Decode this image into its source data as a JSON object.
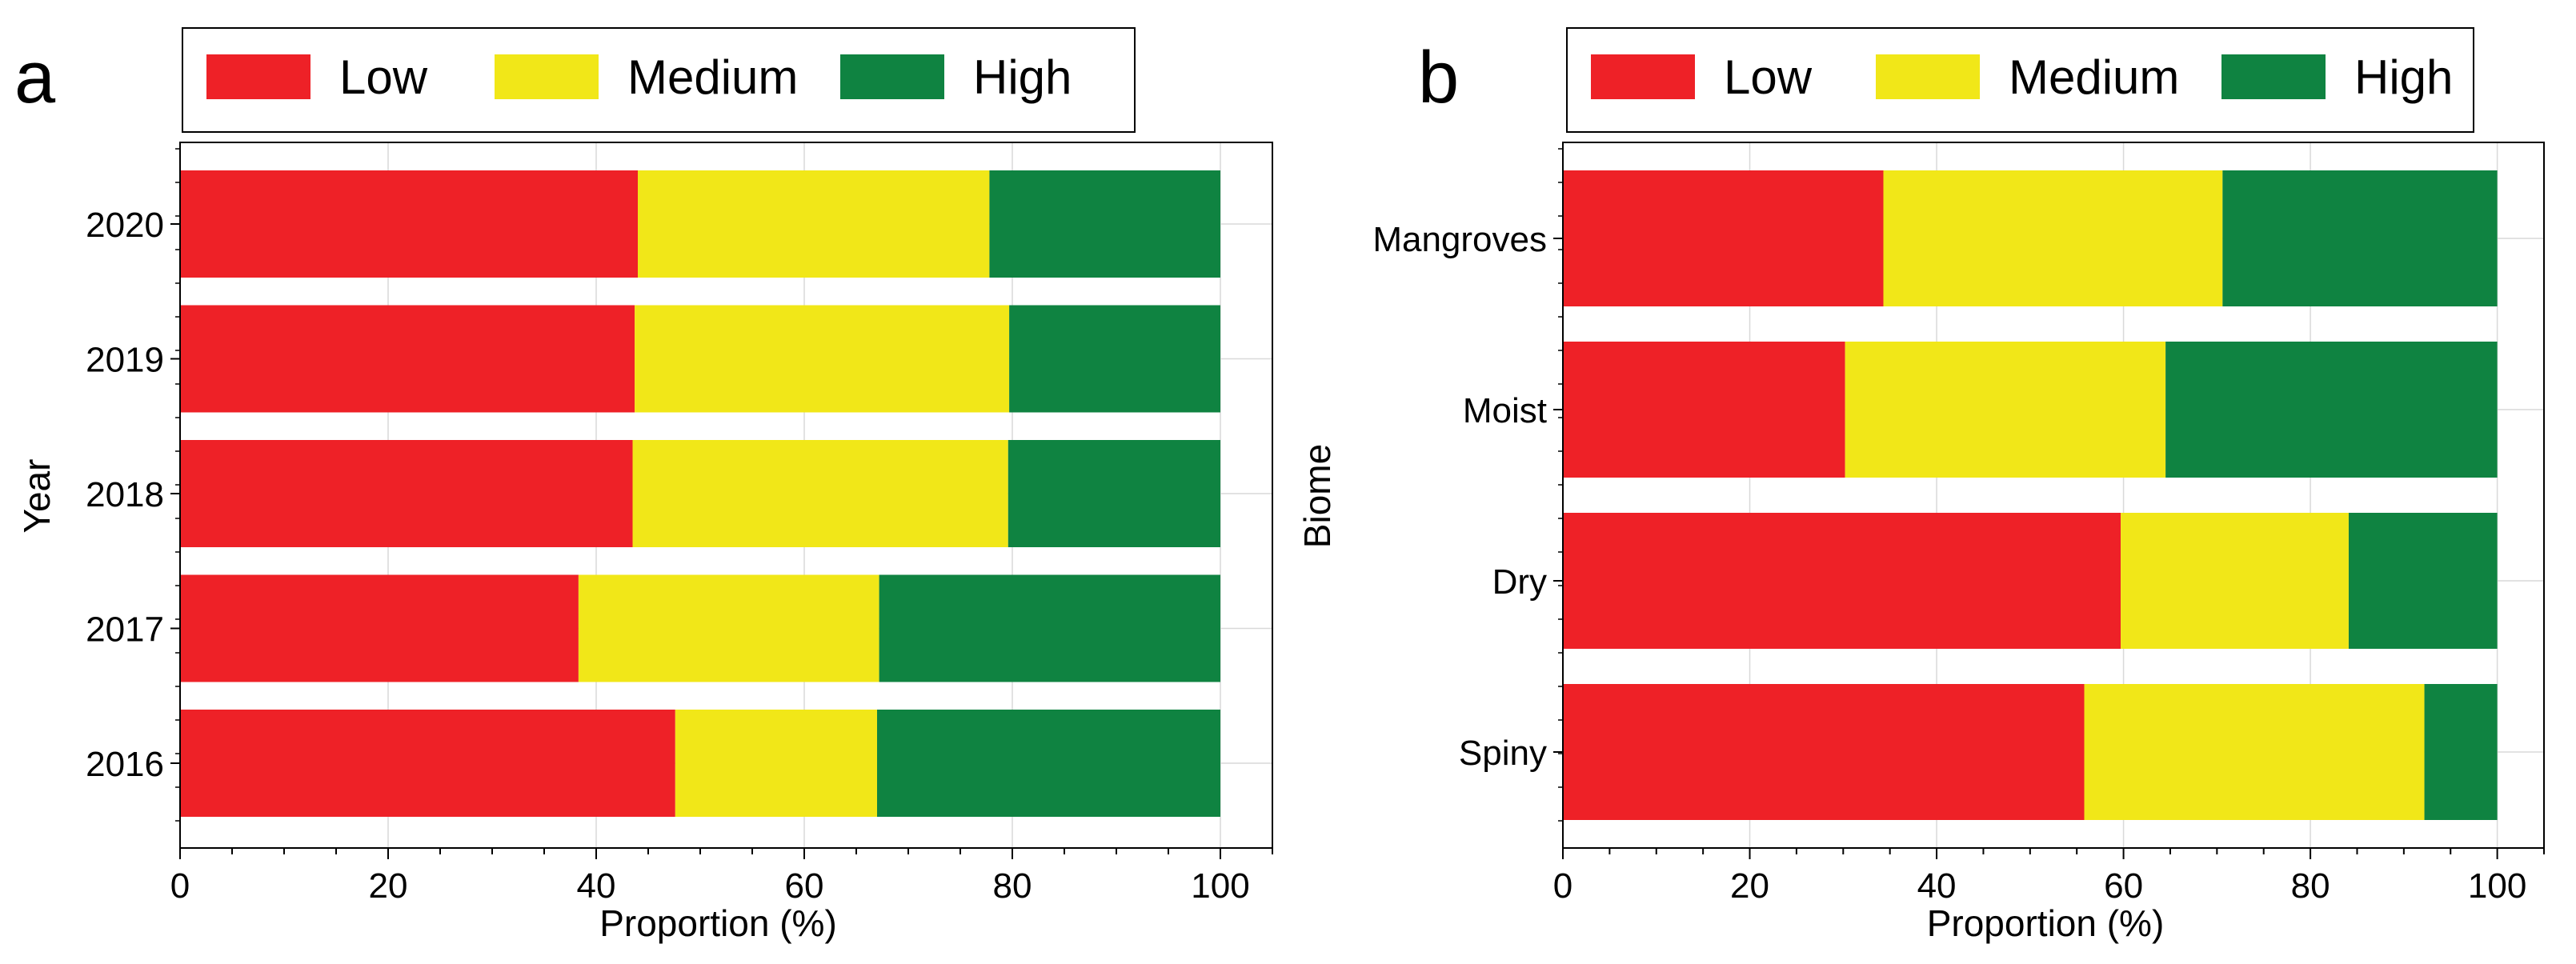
{
  "colors": {
    "Low": "#ee2127",
    "Medium": "#f1e718",
    "High": "#0f8341"
  },
  "legend": {
    "items": [
      "Low",
      "Medium",
      "High"
    ]
  },
  "chart_data": [
    {
      "panel": "a",
      "type": "bar",
      "orientation": "horizontal",
      "stacked": true,
      "categories": [
        "2020",
        "2019",
        "2018",
        "2017",
        "2016"
      ],
      "series": [
        {
          "name": "Low",
          "values": [
            44.0,
            43.7,
            43.5,
            38.3,
            47.6
          ]
        },
        {
          "name": "Medium",
          "values": [
            33.8,
            36.0,
            36.1,
            28.9,
            19.4
          ]
        },
        {
          "name": "High",
          "values": [
            22.2,
            20.3,
            20.4,
            32.8,
            33.0
          ]
        }
      ],
      "xlabel": "Proportion (%)",
      "ylabel": "Year",
      "xlim": [
        0,
        105
      ],
      "xticks": [
        0,
        20,
        40,
        60,
        80,
        100
      ],
      "legend_position": "top",
      "grid": true
    },
    {
      "panel": "b",
      "type": "bar",
      "orientation": "horizontal",
      "stacked": true,
      "categories": [
        "Mangroves",
        "Moist",
        "Dry",
        "Spiny"
      ],
      "series": [
        {
          "name": "Low",
          "values": [
            34.3,
            30.2,
            59.7,
            55.8
          ]
        },
        {
          "name": "Medium",
          "values": [
            36.3,
            34.3,
            24.4,
            36.4
          ]
        },
        {
          "name": "High",
          "values": [
            29.4,
            35.5,
            15.9,
            7.8
          ]
        }
      ],
      "xlabel": "Proportion (%)",
      "ylabel": "Biome",
      "xlim": [
        0,
        105
      ],
      "xticks": [
        0,
        20,
        40,
        60,
        80,
        100
      ],
      "legend_position": "top",
      "grid": true
    }
  ]
}
